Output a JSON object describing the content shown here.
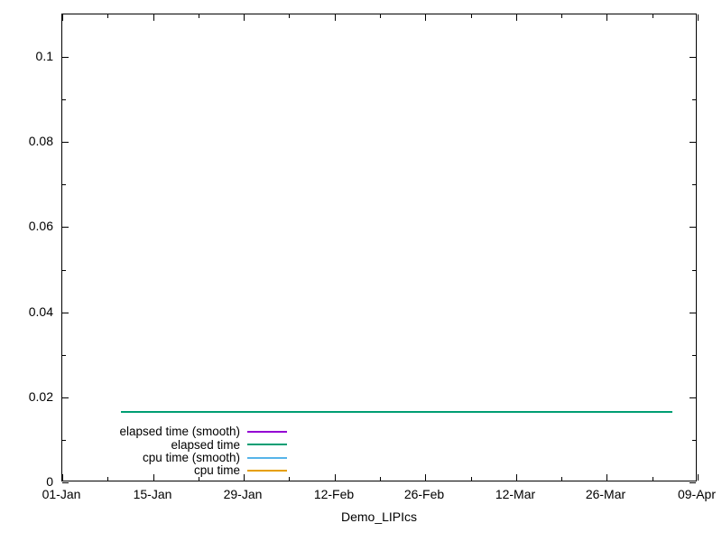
{
  "figure": {
    "background_color": "#ffffff",
    "border_color": "#000000",
    "text_color": "#000000"
  },
  "chart_data": {
    "type": "line",
    "title": "",
    "xlabel": "Demo_LIPIcs",
    "ylabel": "",
    "x_tick_labels": [
      "01-Jan",
      "15-Jan",
      "29-Jan",
      "12-Feb",
      "26-Feb",
      "12-Mar",
      "26-Mar",
      "09-Apr"
    ],
    "x_tick_days": [
      0,
      14,
      28,
      42,
      56,
      70,
      84,
      98
    ],
    "x_minor_tick_days": [
      7,
      21,
      35,
      49,
      63,
      77,
      91
    ],
    "x_range_days": [
      0,
      98
    ],
    "y_tick_labels": [
      "0",
      "0.02",
      "0.04",
      "0.06",
      "0.08",
      "0.1"
    ],
    "y_tick_values": [
      0,
      0.02,
      0.04,
      0.06,
      0.08,
      0.1
    ],
    "y_minor_tick_values": [
      0.01,
      0.03,
      0.05,
      0.07,
      0.09
    ],
    "ylim": [
      0,
      0.11
    ],
    "grid": false,
    "tick_style": "inward-mirrored",
    "legend_position": "bottom-left-inside",
    "series": [
      {
        "name": "elapsed time (smooth)",
        "color": "#9400D3",
        "visible_in_plot": false
      },
      {
        "name": "elapsed time",
        "color": "#009E73",
        "visible_in_plot": true,
        "x_days": [
          9,
          94
        ],
        "values": [
          0.0165,
          0.0165
        ]
      },
      {
        "name": "cpu time (smooth)",
        "color": "#56B4E9",
        "visible_in_plot": false
      },
      {
        "name": "cpu time",
        "color": "#E69F00",
        "visible_in_plot": false
      }
    ]
  }
}
